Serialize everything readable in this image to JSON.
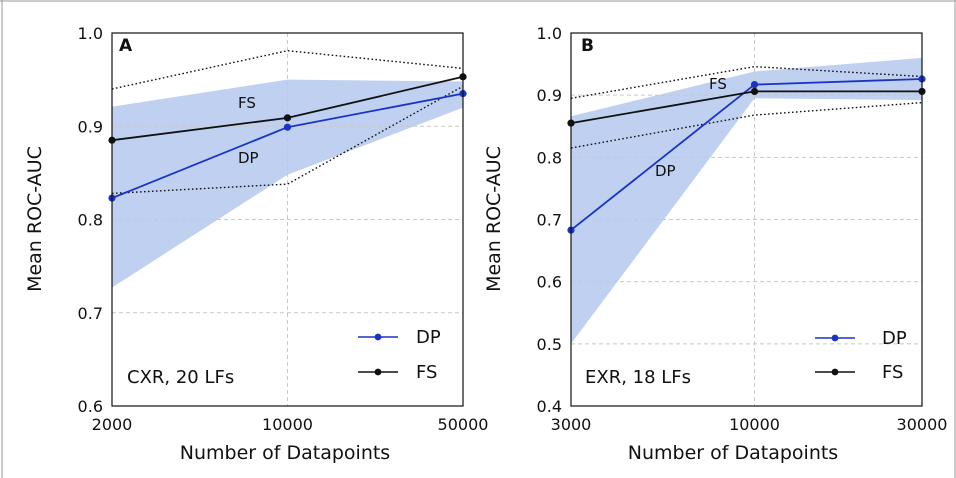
{
  "colors": {
    "DP": "#1a33c4",
    "FS": "#111111",
    "band": "#bccdf0",
    "grid": "#c8c8c8"
  },
  "chart_data": [
    {
      "type": "line",
      "panel": "A",
      "annotation": "CXR, 20 LFs",
      "xlabel": "Number of Datapoints",
      "ylabel": "Mean ROC-AUC",
      "x_scale": "log",
      "x": [
        2000,
        10000,
        50000
      ],
      "xticks": [
        "2000",
        "10000",
        "50000"
      ],
      "ylim": [
        0.6,
        1.0
      ],
      "yticks": [
        "0.6",
        "0.7",
        "0.8",
        "0.9",
        "1.0"
      ],
      "grid": true,
      "legend_position": "bottom-right",
      "series": [
        {
          "name": "DP",
          "label": "DP",
          "values": [
            0.823,
            0.899,
            0.935
          ],
          "band_lower": [
            0.727,
            0.848,
            0.92
          ],
          "band_upper": [
            0.921,
            0.95,
            0.948
          ]
        },
        {
          "name": "FS",
          "label": "FS",
          "values": [
            0.885,
            0.909,
            0.953
          ],
          "dotted_lower": [
            0.828,
            0.838,
            0.943
          ],
          "dotted_upper": [
            0.94,
            0.981,
            0.962
          ]
        }
      ]
    },
    {
      "type": "line",
      "panel": "B",
      "annotation": "EXR, 18 LFs",
      "xlabel": "Number of Datapoints",
      "ylabel": "Mean ROC-AUC",
      "x_scale": "log",
      "x": [
        3000,
        10000,
        30000
      ],
      "xticks": [
        "3000",
        "10000",
        "30000"
      ],
      "ylim": [
        0.4,
        1.0
      ],
      "yticks": [
        "0.4",
        "0.5",
        "0.6",
        "0.7",
        "0.8",
        "0.9",
        "1.0"
      ],
      "grid": true,
      "legend_position": "bottom-right",
      "series": [
        {
          "name": "DP",
          "label": "DP",
          "values": [
            0.683,
            0.917,
            0.926
          ],
          "band_lower": [
            0.5,
            0.895,
            0.892
          ],
          "band_upper": [
            0.866,
            0.938,
            0.96
          ]
        },
        {
          "name": "FS",
          "label": "FS",
          "values": [
            0.855,
            0.906,
            0.906
          ],
          "dotted_lower": [
            0.815,
            0.868,
            0.888
          ],
          "dotted_upper": [
            0.895,
            0.946,
            0.93
          ]
        }
      ]
    }
  ]
}
